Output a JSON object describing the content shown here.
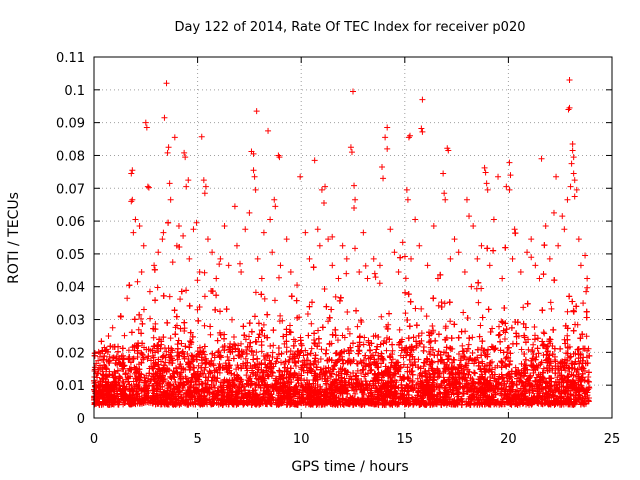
{
  "chart_data": {
    "type": "scatter",
    "title": "Day 122 of 2014, Rate Of TEC Index for receiver p020",
    "xlabel": "GPS time / hours",
    "ylabel": "ROTI / TECUs",
    "xlim": [
      0,
      25
    ],
    "ylim": [
      0,
      0.11
    ],
    "x_ticks": [
      0,
      5,
      10,
      15,
      20,
      25
    ],
    "y_ticks": [
      0,
      0.01,
      0.02,
      0.03,
      0.04,
      0.05,
      0.06,
      0.07,
      0.08,
      0.09,
      0.1,
      0.11
    ],
    "x_tick_labels": [
      "0",
      "5",
      "10",
      "15",
      "20",
      "25"
    ],
    "y_tick_labels": [
      "0",
      "0.01",
      "0.02",
      "0.03",
      "0.04",
      "0.05",
      "0.06",
      "0.07",
      "0.08",
      "0.09",
      "0.1",
      "0.11"
    ],
    "grid": true,
    "marker": "plus",
    "color": "#ff0000",
    "x_range_of_data": [
      0,
      23.9
    ],
    "points": [
      [
        3.5,
        0.102
      ],
      [
        12.5,
        0.0995
      ],
      [
        22.95,
        0.103
      ],
      [
        15.85,
        0.097
      ],
      [
        7.85,
        0.0935
      ],
      [
        3.4,
        0.0915
      ],
      [
        2.5,
        0.09
      ],
      [
        2.55,
        0.0885
      ],
      [
        14.15,
        0.0885
      ],
      [
        15.2,
        0.0855
      ],
      [
        15.25,
        0.086
      ],
      [
        3.9,
        0.0855
      ],
      [
        5.2,
        0.0857
      ],
      [
        8.4,
        0.0875
      ],
      [
        22.9,
        0.094
      ],
      [
        22.95,
        0.0945
      ],
      [
        23.1,
        0.0835
      ],
      [
        23.1,
        0.0815
      ],
      [
        3.6,
        0.0825
      ],
      [
        3.55,
        0.0808
      ],
      [
        4.35,
        0.0808
      ],
      [
        4.4,
        0.0795
      ],
      [
        8.9,
        0.08
      ],
      [
        8.95,
        0.0795
      ],
      [
        7.6,
        0.0812
      ],
      [
        7.7,
        0.0805
      ],
      [
        12.4,
        0.0825
      ],
      [
        12.45,
        0.081
      ],
      [
        14.05,
        0.0855
      ],
      [
        14.15,
        0.082
      ],
      [
        15.8,
        0.0882
      ],
      [
        15.85,
        0.0872
      ],
      [
        17.05,
        0.0822
      ],
      [
        17.1,
        0.0815
      ],
      [
        18.9,
        0.0748
      ],
      [
        18.85,
        0.0762
      ],
      [
        20.05,
        0.0778
      ],
      [
        20.1,
        0.074
      ],
      [
        21.6,
        0.079
      ],
      [
        23.05,
        0.0775
      ],
      [
        23.15,
        0.0795
      ],
      [
        23.15,
        0.0745
      ],
      [
        1.85,
        0.0755
      ],
      [
        1.8,
        0.0745
      ],
      [
        1.8,
        0.066
      ],
      [
        1.85,
        0.0665
      ],
      [
        2.6,
        0.0705
      ],
      [
        2.65,
        0.0702
      ],
      [
        3.65,
        0.0715
      ],
      [
        3.7,
        0.0665
      ],
      [
        4.55,
        0.0725
      ],
      [
        4.45,
        0.0705
      ],
      [
        5.3,
        0.0725
      ],
      [
        5.35,
        0.0685
      ],
      [
        5.4,
        0.0705
      ],
      [
        6.8,
        0.0645
      ],
      [
        7.7,
        0.0755
      ],
      [
        7.75,
        0.0735
      ],
      [
        7.8,
        0.0695
      ],
      [
        8.7,
        0.0665
      ],
      [
        8.75,
        0.0645
      ],
      [
        10.65,
        0.0785
      ],
      [
        9.95,
        0.0735
      ],
      [
        11.0,
        0.0695
      ],
      [
        11.1,
        0.0655
      ],
      [
        11.15,
        0.0705
      ],
      [
        12.55,
        0.0708
      ],
      [
        12.6,
        0.0665
      ],
      [
        12.55,
        0.064
      ],
      [
        13.9,
        0.0765
      ],
      [
        13.95,
        0.073
      ],
      [
        15.1,
        0.0695
      ],
      [
        15.15,
        0.0665
      ],
      [
        16.85,
        0.0745
      ],
      [
        16.9,
        0.0685
      ],
      [
        16.95,
        0.0665
      ],
      [
        18.0,
        0.0665
      ],
      [
        18.1,
        0.0615
      ],
      [
        18.95,
        0.0715
      ],
      [
        19.0,
        0.0695
      ],
      [
        19.5,
        0.0735
      ],
      [
        19.9,
        0.0705
      ],
      [
        20.05,
        0.0695
      ],
      [
        22.3,
        0.0735
      ],
      [
        22.2,
        0.0625
      ],
      [
        22.85,
        0.0665
      ],
      [
        23.0,
        0.0705
      ],
      [
        23.2,
        0.0725
      ],
      [
        23.3,
        0.0695
      ],
      [
        23.2,
        0.0675
      ],
      [
        2.0,
        0.0605
      ],
      [
        2.2,
        0.0585
      ],
      [
        1.9,
        0.0565
      ],
      [
        2.4,
        0.0525
      ],
      [
        3.3,
        0.0545
      ],
      [
        3.35,
        0.0565
      ],
      [
        4.1,
        0.0585
      ],
      [
        4.3,
        0.0555
      ],
      [
        4.8,
        0.0575
      ],
      [
        4.95,
        0.0595
      ],
      [
        5.5,
        0.0545
      ],
      [
        6.3,
        0.0585
      ],
      [
        7.3,
        0.0575
      ],
      [
        7.5,
        0.0625
      ],
      [
        8.2,
        0.0565
      ],
      [
        8.5,
        0.0605
      ],
      [
        9.3,
        0.0545
      ],
      [
        10.2,
        0.0565
      ],
      [
        10.8,
        0.0575
      ],
      [
        11.3,
        0.0545
      ],
      [
        12.0,
        0.0525
      ],
      [
        13.0,
        0.0565
      ],
      [
        14.3,
        0.0575
      ],
      [
        14.9,
        0.0535
      ],
      [
        15.5,
        0.0605
      ],
      [
        16.4,
        0.0585
      ],
      [
        17.4,
        0.0545
      ],
      [
        18.3,
        0.0585
      ],
      [
        19.3,
        0.0605
      ],
      [
        20.3,
        0.0575
      ],
      [
        21.1,
        0.0545
      ],
      [
        21.8,
        0.0585
      ],
      [
        22.6,
        0.0615
      ],
      [
        22.7,
        0.0575
      ],
      [
        23.4,
        0.0545
      ],
      [
        0.2,
        0.0175
      ],
      [
        0.1,
        0.0135
      ],
      [
        0.3,
        0.011
      ],
      [
        0.5,
        0.0215
      ],
      [
        0.7,
        0.025
      ],
      [
        0.6,
        0.0148
      ],
      [
        0.9,
        0.0275
      ],
      [
        1.1,
        0.0188
      ],
      [
        1.3,
        0.0308
      ],
      [
        1.6,
        0.0365
      ],
      [
        2.1,
        0.0415
      ],
      [
        2.3,
        0.0445
      ],
      [
        2.7,
        0.0385
      ],
      [
        2.9,
        0.0465
      ],
      [
        3.1,
        0.0505
      ],
      [
        3.8,
        0.0475
      ],
      [
        4.0,
        0.0525
      ],
      [
        4.6,
        0.0485
      ],
      [
        5.1,
        0.0445
      ],
      [
        5.7,
        0.0505
      ],
      [
        5.9,
        0.0425
      ],
      [
        6.1,
        0.0485
      ],
      [
        6.5,
        0.0465
      ],
      [
        6.9,
        0.0525
      ],
      [
        7.1,
        0.0445
      ],
      [
        7.9,
        0.0485
      ],
      [
        8.1,
        0.0425
      ],
      [
        8.6,
        0.0505
      ],
      [
        9.0,
        0.0465
      ],
      [
        9.5,
        0.0445
      ],
      [
        9.8,
        0.0405
      ],
      [
        10.4,
        0.0485
      ],
      [
        10.9,
        0.0525
      ],
      [
        11.5,
        0.0465
      ],
      [
        11.8,
        0.0425
      ],
      [
        12.2,
        0.0485
      ],
      [
        12.8,
        0.0445
      ],
      [
        13.2,
        0.0425
      ],
      [
        13.5,
        0.0485
      ],
      [
        13.8,
        0.0465
      ],
      [
        14.5,
        0.0505
      ],
      [
        14.7,
        0.0445
      ],
      [
        15.3,
        0.0485
      ],
      [
        15.7,
        0.0525
      ],
      [
        16.1,
        0.0465
      ],
      [
        16.6,
        0.0425
      ],
      [
        17.2,
        0.0485
      ],
      [
        17.6,
        0.0505
      ],
      [
        17.9,
        0.0445
      ],
      [
        18.5,
        0.0485
      ],
      [
        18.7,
        0.0525
      ],
      [
        19.1,
        0.0465
      ],
      [
        19.7,
        0.0425
      ],
      [
        20.2,
        0.0485
      ],
      [
        20.6,
        0.0445
      ],
      [
        20.9,
        0.0505
      ],
      [
        21.3,
        0.0465
      ],
      [
        21.5,
        0.0425
      ],
      [
        22.0,
        0.0485
      ],
      [
        22.4,
        0.0525
      ],
      [
        23.5,
        0.0465
      ],
      [
        23.7,
        0.0495
      ],
      [
        23.8,
        0.0425
      ],
      [
        23.75,
        0.0385
      ],
      [
        23.8,
        0.0205
      ],
      [
        23.85,
        0.0125
      ],
      [
        23.8,
        0.0085
      ],
      [
        23.7,
        0.0065
      ],
      [
        0.05,
        0.0095
      ],
      [
        0.02,
        0.0125
      ]
    ]
  }
}
